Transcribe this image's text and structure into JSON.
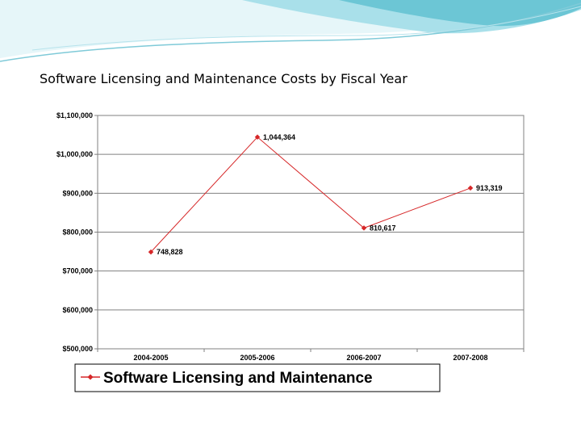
{
  "slide": {
    "title": "Software Licensing and Maintenance Costs by Fiscal Year"
  },
  "colors": {
    "series": "#d62728",
    "banner_light": "#c8ecf2",
    "banner_mid": "#8fd3df",
    "banner_dark": "#4fb8c9"
  },
  "chart_data": {
    "type": "line",
    "title": "",
    "xlabel": "",
    "ylabel": "",
    "categories": [
      "2004-2005",
      "2005-2006",
      "2006-2007",
      "2007-2008"
    ],
    "series": [
      {
        "name": "Software Licensing and Maintenance",
        "values": [
          748828,
          1044364,
          810617,
          913319
        ],
        "labels": [
          "748,828",
          "1,044,364",
          "810,617",
          "913,319"
        ]
      }
    ],
    "ylim": [
      500000,
      1100000
    ],
    "yticks": [
      1100000,
      1000000,
      900000,
      800000,
      700000,
      600000,
      500000
    ],
    "ytick_labels": [
      "$1,100,000",
      "$1,000,000",
      "$900,000",
      "$800,000",
      "$700,000",
      "$600,000",
      "$500,000"
    ],
    "grid": true,
    "legend_position": "bottom"
  }
}
